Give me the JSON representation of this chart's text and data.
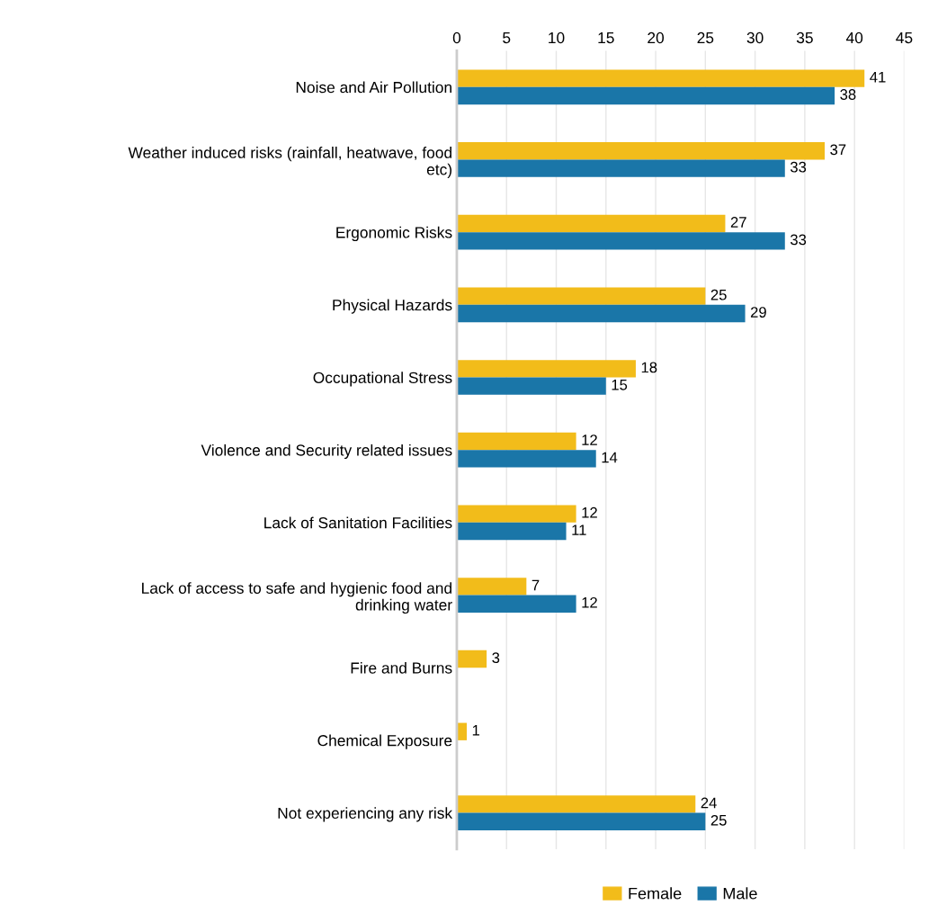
{
  "chart_data": {
    "type": "bar",
    "orientation": "horizontal",
    "categories": [
      "Noise and Air Pollution",
      "Weather induced risks (rainfall, heatwave, food\netc)",
      "Ergonomic Risks",
      "Physical Hazards",
      "Occupational Stress",
      "Violence and Security related issues",
      "Lack of Sanitation Facilities",
      "Lack of access to safe and hygienic food and\ndrinking water",
      "Fire and Burns",
      "Chemical Exposure",
      "Not experiencing any risk"
    ],
    "series": [
      {
        "name": "Female",
        "color": "#f2bc1a",
        "values": [
          41,
          37,
          27,
          25,
          18,
          12,
          12,
          7,
          3,
          1,
          24
        ]
      },
      {
        "name": "Male",
        "color": "#1a76a8",
        "values": [
          38,
          33,
          33,
          29,
          15,
          14,
          11,
          12,
          null,
          null,
          25
        ]
      }
    ],
    "xlim": [
      0,
      45
    ],
    "xticks": [
      0,
      5,
      10,
      15,
      20,
      25,
      30,
      35,
      40,
      45
    ],
    "grid": "x",
    "legend": "bottom",
    "data_labels": true
  }
}
